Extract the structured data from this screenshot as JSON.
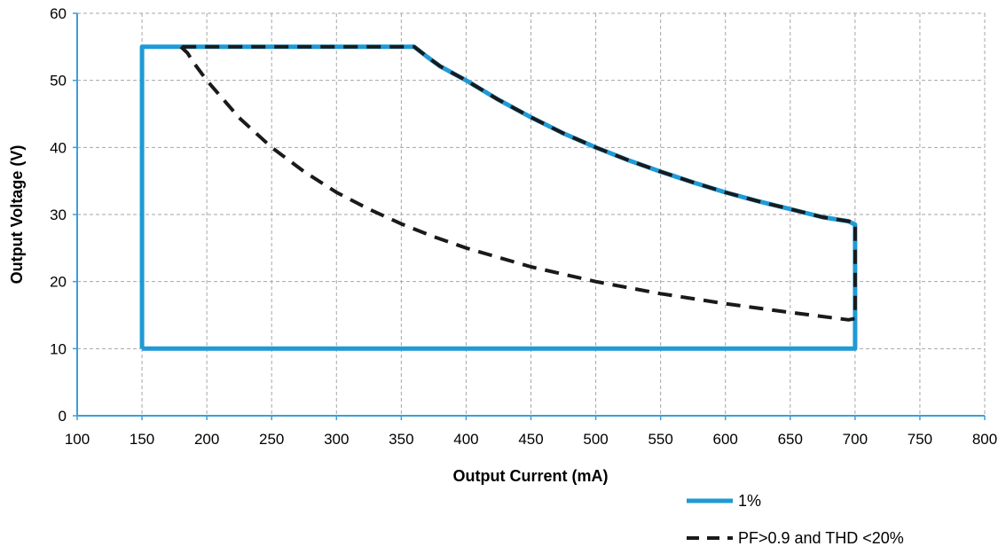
{
  "chart_data": {
    "type": "line",
    "title": "",
    "xlabel": "Output Current (mA)",
    "ylabel": "Output Voltage (V)",
    "xlim": [
      100,
      800
    ],
    "ylim": [
      0,
      60
    ],
    "xticks": [
      100,
      150,
      200,
      250,
      300,
      350,
      400,
      450,
      500,
      550,
      600,
      650,
      700,
      750,
      800
    ],
    "yticks": [
      0,
      10,
      20,
      30,
      40,
      50,
      60
    ],
    "grid": true,
    "legend_position": "bottom-right",
    "series": [
      {
        "name": "1%",
        "color": "#1f9ad6",
        "style": "solid",
        "points": [
          [
            150,
            10
          ],
          [
            150,
            55
          ],
          [
            360,
            55
          ],
          [
            370,
            53.5
          ],
          [
            380,
            52.1
          ],
          [
            400,
            50.0
          ],
          [
            425,
            47.1
          ],
          [
            450,
            44.5
          ],
          [
            475,
            42.1
          ],
          [
            500,
            40.0
          ],
          [
            525,
            38.1
          ],
          [
            550,
            36.4
          ],
          [
            575,
            34.8
          ],
          [
            600,
            33.3
          ],
          [
            625,
            32.0
          ],
          [
            650,
            30.8
          ],
          [
            675,
            29.6
          ],
          [
            695,
            29.0
          ],
          [
            700,
            28.5
          ],
          [
            700,
            10
          ],
          [
            150,
            10
          ]
        ]
      },
      {
        "name": "PF>0.9 and THD <20%",
        "color": "#1a1a1a",
        "style": "dashed",
        "points": [
          [
            180,
            55
          ],
          [
            185,
            54.1
          ],
          [
            190,
            52.6
          ],
          [
            200,
            50.0
          ],
          [
            225,
            44.4
          ],
          [
            250,
            40.0
          ],
          [
            275,
            36.4
          ],
          [
            300,
            33.3
          ],
          [
            325,
            30.8
          ],
          [
            350,
            28.6
          ],
          [
            375,
            26.7
          ],
          [
            400,
            25.0
          ],
          [
            450,
            22.2
          ],
          [
            500,
            20.0
          ],
          [
            550,
            18.2
          ],
          [
            600,
            16.7
          ],
          [
            650,
            15.4
          ],
          [
            695,
            14.3
          ],
          [
            700,
            14.5
          ],
          [
            700,
            28.8
          ],
          [
            695,
            29.0
          ],
          [
            675,
            29.6
          ],
          [
            650,
            30.8
          ],
          [
            625,
            32.0
          ],
          [
            600,
            33.3
          ],
          [
            575,
            34.8
          ],
          [
            550,
            36.4
          ],
          [
            525,
            38.1
          ],
          [
            500,
            40.0
          ],
          [
            475,
            42.1
          ],
          [
            450,
            44.5
          ],
          [
            425,
            47.1
          ],
          [
            400,
            50.0
          ],
          [
            380,
            52.1
          ],
          [
            370,
            53.5
          ],
          [
            360,
            55
          ],
          [
            180,
            55
          ]
        ]
      }
    ]
  }
}
